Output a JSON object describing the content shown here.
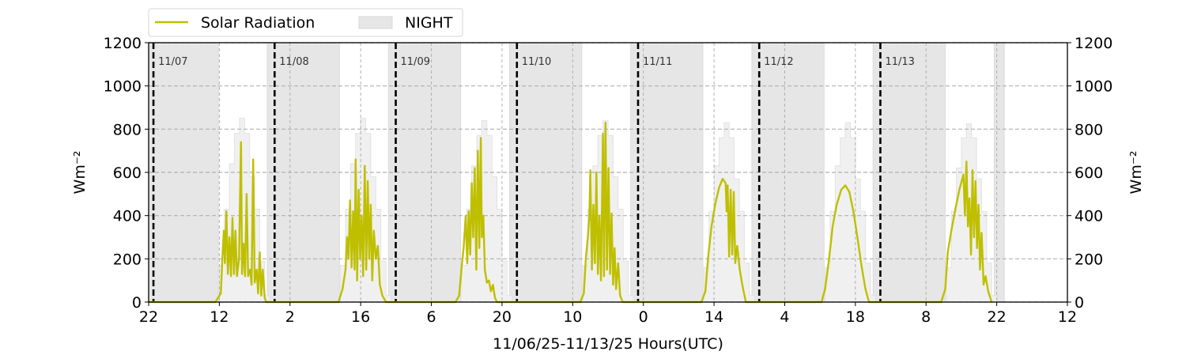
{
  "chart_data": {
    "type": "line",
    "xlabel": "11/06/25-11/13/25  Hours(UTC)",
    "ylabel_left": "Wm⁻²",
    "ylabel_right": "Wm⁻²",
    "xlim": [
      0,
      182
    ],
    "ylim": [
      0,
      1200
    ],
    "x_ticks": [
      0,
      14,
      28,
      42,
      56,
      70,
      84,
      98,
      112,
      126,
      140,
      154,
      168,
      182
    ],
    "x_tick_labels": [
      "22",
      "12",
      "2",
      "16",
      "6",
      "20",
      "10",
      "0",
      "14",
      "4",
      "18",
      "8",
      "22",
      "12"
    ],
    "y_ticks": [
      0,
      200,
      400,
      600,
      800,
      1000,
      1200
    ],
    "y_tick_labels": [
      "0",
      "200",
      "400",
      "600",
      "800",
      "1000",
      "1200"
    ],
    "grid": true,
    "legend": {
      "placement": "top-left outside",
      "entries": [
        {
          "label": "Solar Radiation",
          "type": "line",
          "color": "#bfbf00"
        },
        {
          "label": "NIGHT",
          "type": "patch",
          "color": "#e6e6e6"
        }
      ]
    },
    "night_periods": [
      [
        0,
        13.8
      ],
      [
        23.5,
        37.8
      ],
      [
        47.5,
        61.8
      ],
      [
        71.5,
        85.8
      ],
      [
        95.5,
        109.8
      ],
      [
        119.5,
        133.8
      ],
      [
        143.5,
        157.8
      ],
      [
        167.5,
        169.5
      ]
    ],
    "day_markers": [
      {
        "x": 0.95,
        "label": "11/07"
      },
      {
        "x": 24.95,
        "label": "11/08"
      },
      {
        "x": 48.95,
        "label": "11/09"
      },
      {
        "x": 72.95,
        "label": "11/10"
      },
      {
        "x": 96.95,
        "label": "11/11"
      },
      {
        "x": 120.95,
        "label": "11/12"
      },
      {
        "x": 144.95,
        "label": "11/13"
      }
    ],
    "background_hourly_steps": {
      "start_hours": [
        14,
        38,
        62,
        86,
        110,
        134,
        158
      ],
      "profiles": [
        [
          170,
          430,
          640,
          780,
          850,
          780,
          580,
          430,
          190,
          30
        ],
        [
          170,
          430,
          640,
          780,
          850,
          780,
          580,
          430,
          190,
          30
        ],
        [
          170,
          430,
          630,
          770,
          840,
          770,
          580,
          430,
          190,
          30
        ],
        [
          170,
          430,
          630,
          770,
          840,
          770,
          580,
          430,
          190,
          30
        ],
        [
          160,
          420,
          630,
          760,
          830,
          760,
          570,
          420,
          180,
          30
        ],
        [
          160,
          420,
          630,
          760,
          830,
          760,
          570,
          420,
          180,
          30
        ],
        [
          160,
          420,
          620,
          760,
          825,
          760,
          570,
          420,
          180,
          30
        ]
      ]
    },
    "series": [
      {
        "name": "Solar Radiation",
        "color": "#bfbf00",
        "points": [
          [
            0,
            0
          ],
          [
            13.2,
            0
          ],
          [
            14.3,
            40
          ],
          [
            14.6,
            200
          ],
          [
            14.9,
            330
          ],
          [
            15.1,
            180
          ],
          [
            15.4,
            420
          ],
          [
            15.7,
            130
          ],
          [
            16.0,
            300
          ],
          [
            16.3,
            120
          ],
          [
            16.6,
            390
          ],
          [
            16.9,
            130
          ],
          [
            17.2,
            330
          ],
          [
            17.5,
            120
          ],
          [
            17.9,
            200
          ],
          [
            18.3,
            740
          ],
          [
            18.5,
            130
          ],
          [
            18.8,
            270
          ],
          [
            19.1,
            120
          ],
          [
            19.4,
            500
          ],
          [
            19.7,
            120
          ],
          [
            20.1,
            150
          ],
          [
            20.4,
            80
          ],
          [
            20.7,
            660
          ],
          [
            21.0,
            90
          ],
          [
            21.4,
            150
          ],
          [
            21.7,
            40
          ],
          [
            22.0,
            230
          ],
          [
            22.3,
            30
          ],
          [
            22.6,
            150
          ],
          [
            23.0,
            20
          ],
          [
            23.3,
            0
          ],
          [
            37.6,
            0
          ],
          [
            38.4,
            60
          ],
          [
            39.0,
            150
          ],
          [
            39.3,
            300
          ],
          [
            39.6,
            200
          ],
          [
            39.9,
            470
          ],
          [
            40.2,
            160
          ],
          [
            40.5,
            420
          ],
          [
            40.8,
            150
          ],
          [
            41.0,
            660
          ],
          [
            41.3,
            100
          ],
          [
            41.6,
            520
          ],
          [
            41.9,
            200
          ],
          [
            42.2,
            400
          ],
          [
            42.5,
            120
          ],
          [
            42.8,
            630
          ],
          [
            43.1,
            150
          ],
          [
            43.4,
            560
          ],
          [
            43.7,
            200
          ],
          [
            44.0,
            450
          ],
          [
            44.3,
            100
          ],
          [
            44.6,
            330
          ],
          [
            45.0,
            200
          ],
          [
            45.4,
            260
          ],
          [
            45.8,
            80
          ],
          [
            46.3,
            30
          ],
          [
            47.0,
            0
          ],
          [
            60.8,
            0
          ],
          [
            61.5,
            30
          ],
          [
            62.0,
            160
          ],
          [
            62.4,
            250
          ],
          [
            62.8,
            400
          ],
          [
            63.1,
            180
          ],
          [
            63.4,
            420
          ],
          [
            63.7,
            220
          ],
          [
            64.0,
            550
          ],
          [
            64.3,
            300
          ],
          [
            64.6,
            620
          ],
          [
            64.9,
            150
          ],
          [
            65.2,
            700
          ],
          [
            65.5,
            250
          ],
          [
            65.8,
            760
          ],
          [
            66.0,
            300
          ],
          [
            66.3,
            400
          ],
          [
            66.6,
            150
          ],
          [
            67.0,
            90
          ],
          [
            67.4,
            100
          ],
          [
            67.8,
            50
          ],
          [
            68.2,
            80
          ],
          [
            68.6,
            20
          ],
          [
            69.0,
            0
          ],
          [
            85.5,
            0
          ],
          [
            86.2,
            40
          ],
          [
            86.6,
            200
          ],
          [
            87.0,
            300
          ],
          [
            87.3,
            400
          ],
          [
            87.5,
            610
          ],
          [
            87.8,
            150
          ],
          [
            88.1,
            450
          ],
          [
            88.4,
            180
          ],
          [
            88.7,
            600
          ],
          [
            89.0,
            130
          ],
          [
            89.3,
            400
          ],
          [
            89.6,
            100
          ],
          [
            90.0,
            780
          ],
          [
            90.2,
            120
          ],
          [
            90.5,
            830
          ],
          [
            90.8,
            150
          ],
          [
            91.1,
            620
          ],
          [
            91.4,
            130
          ],
          [
            91.7,
            410
          ],
          [
            92.0,
            80
          ],
          [
            92.3,
            250
          ],
          [
            92.6,
            60
          ],
          [
            93.0,
            180
          ],
          [
            93.4,
            30
          ],
          [
            93.9,
            0
          ],
          [
            109.5,
            0
          ],
          [
            110.3,
            50
          ],
          [
            110.8,
            200
          ],
          [
            111.5,
            350
          ],
          [
            112.2,
            450
          ],
          [
            113.0,
            530
          ],
          [
            113.7,
            570
          ],
          [
            114.3,
            550
          ],
          [
            114.5,
            420
          ],
          [
            114.7,
            540
          ],
          [
            115.0,
            210
          ],
          [
            115.3,
            520
          ],
          [
            115.6,
            220
          ],
          [
            115.9,
            510
          ],
          [
            116.2,
            180
          ],
          [
            116.6,
            260
          ],
          [
            117.1,
            150
          ],
          [
            117.6,
            80
          ],
          [
            118.3,
            0
          ],
          [
            133.3,
            0
          ],
          [
            134.0,
            60
          ],
          [
            134.8,
            200
          ],
          [
            135.5,
            350
          ],
          [
            136.3,
            450
          ],
          [
            137.2,
            520
          ],
          [
            138.0,
            540
          ],
          [
            138.8,
            510
          ],
          [
            139.6,
            420
          ],
          [
            140.4,
            300
          ],
          [
            141.2,
            170
          ],
          [
            142.0,
            60
          ],
          [
            142.7,
            0
          ],
          [
            157.0,
            0
          ],
          [
            157.8,
            60
          ],
          [
            158.3,
            230
          ],
          [
            159.0,
            330
          ],
          [
            159.8,
            430
          ],
          [
            160.6,
            520
          ],
          [
            161.4,
            590
          ],
          [
            161.7,
            400
          ],
          [
            162.0,
            650
          ],
          [
            162.3,
            350
          ],
          [
            162.6,
            480
          ],
          [
            162.9,
            220
          ],
          [
            163.2,
            610
          ],
          [
            163.5,
            300
          ],
          [
            163.8,
            560
          ],
          [
            164.1,
            250
          ],
          [
            164.4,
            450
          ],
          [
            164.7,
            150
          ],
          [
            165.0,
            320
          ],
          [
            165.4,
            80
          ],
          [
            165.8,
            120
          ],
          [
            166.3,
            50
          ],
          [
            167.0,
            0
          ]
        ]
      }
    ]
  }
}
